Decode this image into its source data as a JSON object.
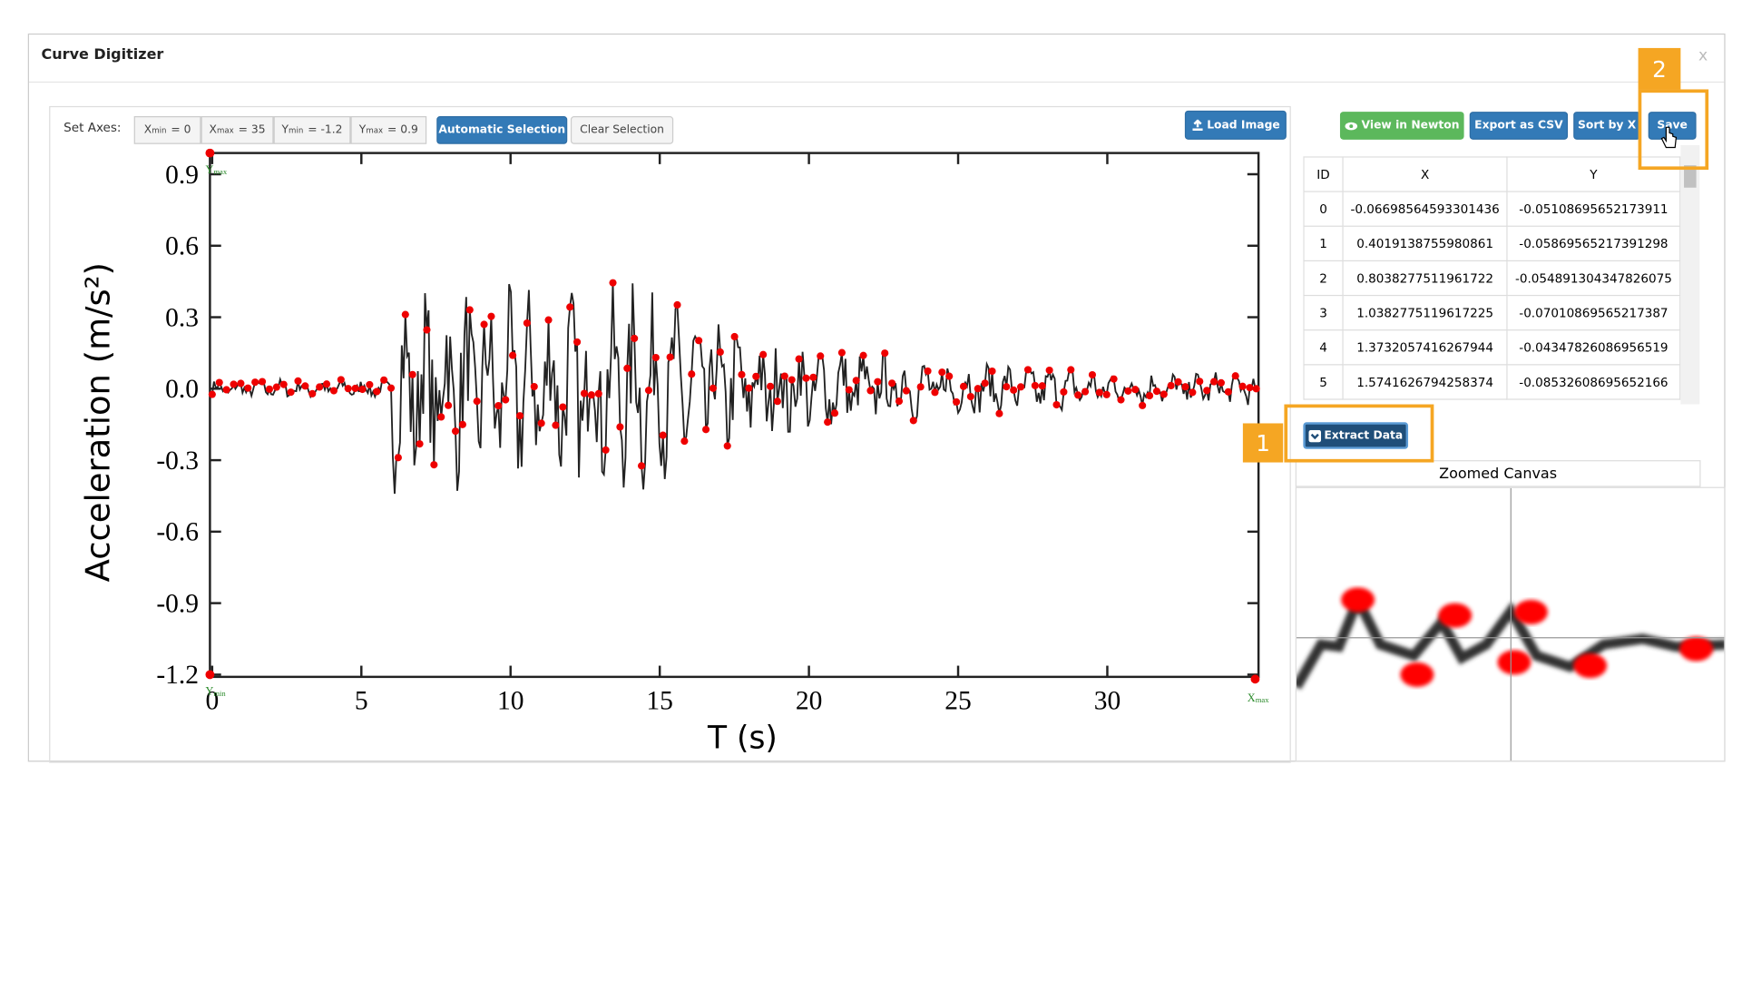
{
  "window": {
    "title": "Curve Digitizer",
    "close": "x"
  },
  "toolbar": {
    "label": "Set Axes:",
    "axes": [
      {
        "symbol": "X",
        "sub": "min",
        "rest": "= 0"
      },
      {
        "symbol": "X",
        "sub": "max",
        "rest": "= 35"
      },
      {
        "symbol": "Y",
        "sub": "min",
        "rest": "= -1.2"
      },
      {
        "symbol": "Y",
        "sub": "max",
        "rest": "= 0.9"
      }
    ],
    "buttons": [
      "Automatic Selection",
      "Clear Selection",
      "Load Image"
    ]
  },
  "plot": {
    "ylabel": "Acceleration (m/s²)",
    "xlabel": "T (s)",
    "yticks": [
      "0.9",
      "0.6",
      "0.3",
      "0.0",
      "-0.3",
      "-0.6",
      "-0.9",
      "-1.2"
    ],
    "xticks": [
      "0",
      "5",
      "10",
      "15",
      "20",
      "25",
      "30"
    ],
    "markers": [
      {
        "symbol": "Y",
        "sub": "max"
      },
      {
        "symbol": "Y",
        "sub": "min"
      },
      {
        "symbol": "X",
        "sub": "max"
      }
    ]
  },
  "actions": [
    "View in Newton",
    "Export as CSV",
    "Sort by X",
    "Save"
  ],
  "table": {
    "headers": [
      "ID",
      "X",
      "Y"
    ],
    "rows": [
      [
        "0",
        "-0.06698564593301436",
        "-0.05108695652173911"
      ],
      [
        "1",
        "0.4019138755980861",
        "-0.05869565217391298"
      ],
      [
        "2",
        "0.8038277511961722",
        "-0.054891304347826075"
      ],
      [
        "3",
        "1.0382775119617225",
        "-0.07010869565217387"
      ],
      [
        "4",
        "1.3732057416267944",
        "-0.04347826086956519"
      ],
      [
        "5",
        "1.5741626794258374",
        "-0.08532608695652166"
      ]
    ]
  },
  "extract": "Extract Data",
  "zoom": {
    "title": "Zoomed Canvas"
  },
  "callouts": [
    "1",
    "2"
  ]
}
